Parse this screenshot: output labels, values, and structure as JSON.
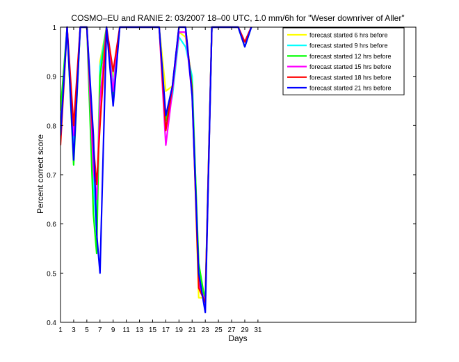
{
  "chart_data": {
    "type": "line",
    "title": "COSMO–EU and RANIE 2: 03/2007 18–00 UTC, 1.0 mm/6h for \"Weser downriver of Aller\"",
    "xlabel": "Days",
    "ylabel": "Percent correct score",
    "xlim": [
      1,
      55
    ],
    "ylim": [
      0.4,
      1.0
    ],
    "xticks": [
      "1",
      "3",
      "5",
      "7",
      "9",
      "11",
      "13",
      "15",
      "17",
      "19",
      "21",
      "23",
      "25",
      "27",
      "29",
      "31"
    ],
    "yticks": [
      "0.4",
      "0.5",
      "0.6",
      "0.7",
      "0.8",
      "0.9",
      "1"
    ],
    "legend_position": "top-right",
    "x": [
      1,
      2,
      3,
      4,
      5,
      6,
      6.5,
      7,
      8,
      9,
      10,
      16,
      17,
      18,
      19,
      20,
      21,
      22,
      23,
      24,
      28,
      29,
      30
    ],
    "series": [
      {
        "name": "forecast started 6 hrs before",
        "color": "#ffff00",
        "values": [
          0.8,
          1.0,
          0.75,
          1.0,
          1.0,
          0.7,
          0.62,
          0.93,
          1.0,
          0.9,
          1.0,
          1.0,
          0.87,
          0.88,
          0.99,
          0.98,
          0.88,
          0.45,
          0.45,
          1.0,
          1.0,
          0.97,
          1.0
        ]
      },
      {
        "name": "forecast started 9 hrs before",
        "color": "#00ffff",
        "values": [
          0.8,
          1.0,
          0.75,
          1.0,
          1.0,
          0.68,
          0.58,
          0.92,
          1.0,
          0.88,
          1.0,
          1.0,
          0.8,
          0.86,
          0.98,
          0.96,
          0.9,
          0.5,
          0.45,
          1.0,
          1.0,
          0.97,
          1.0
        ]
      },
      {
        "name": "forecast started 12 hrs before",
        "color": "#00ff00",
        "values": [
          0.83,
          1.0,
          0.72,
          1.0,
          1.0,
          0.62,
          0.54,
          0.9,
          1.0,
          0.86,
          1.0,
          1.0,
          0.81,
          0.87,
          0.99,
          0.99,
          0.88,
          0.52,
          0.44,
          1.0,
          1.0,
          0.96,
          1.0
        ]
      },
      {
        "name": "forecast started 15 hrs before",
        "color": "#ff00ff",
        "values": [
          0.78,
          1.0,
          0.78,
          1.0,
          1.0,
          0.71,
          0.65,
          0.85,
          1.0,
          0.87,
          1.0,
          1.0,
          0.76,
          0.87,
          0.99,
          0.99,
          0.86,
          0.48,
          0.44,
          1.0,
          1.0,
          0.97,
          1.0
        ]
      },
      {
        "name": "forecast started 18 hrs before",
        "color": "#ff0000",
        "values": [
          0.76,
          1.0,
          0.8,
          1.0,
          1.0,
          0.76,
          0.68,
          0.8,
          1.0,
          0.91,
          1.0,
          1.0,
          0.79,
          0.88,
          1.0,
          1.0,
          0.87,
          0.47,
          0.44,
          1.0,
          1.0,
          0.97,
          1.0
        ]
      },
      {
        "name": "forecast started 21 hrs before",
        "color": "#0000ff",
        "values": [
          0.78,
          1.0,
          0.73,
          1.0,
          1.0,
          0.78,
          0.58,
          0.5,
          1.0,
          0.84,
          1.0,
          1.0,
          0.82,
          0.88,
          1.0,
          1.0,
          0.86,
          0.5,
          0.42,
          1.0,
          1.0,
          0.96,
          1.0
        ]
      }
    ]
  }
}
